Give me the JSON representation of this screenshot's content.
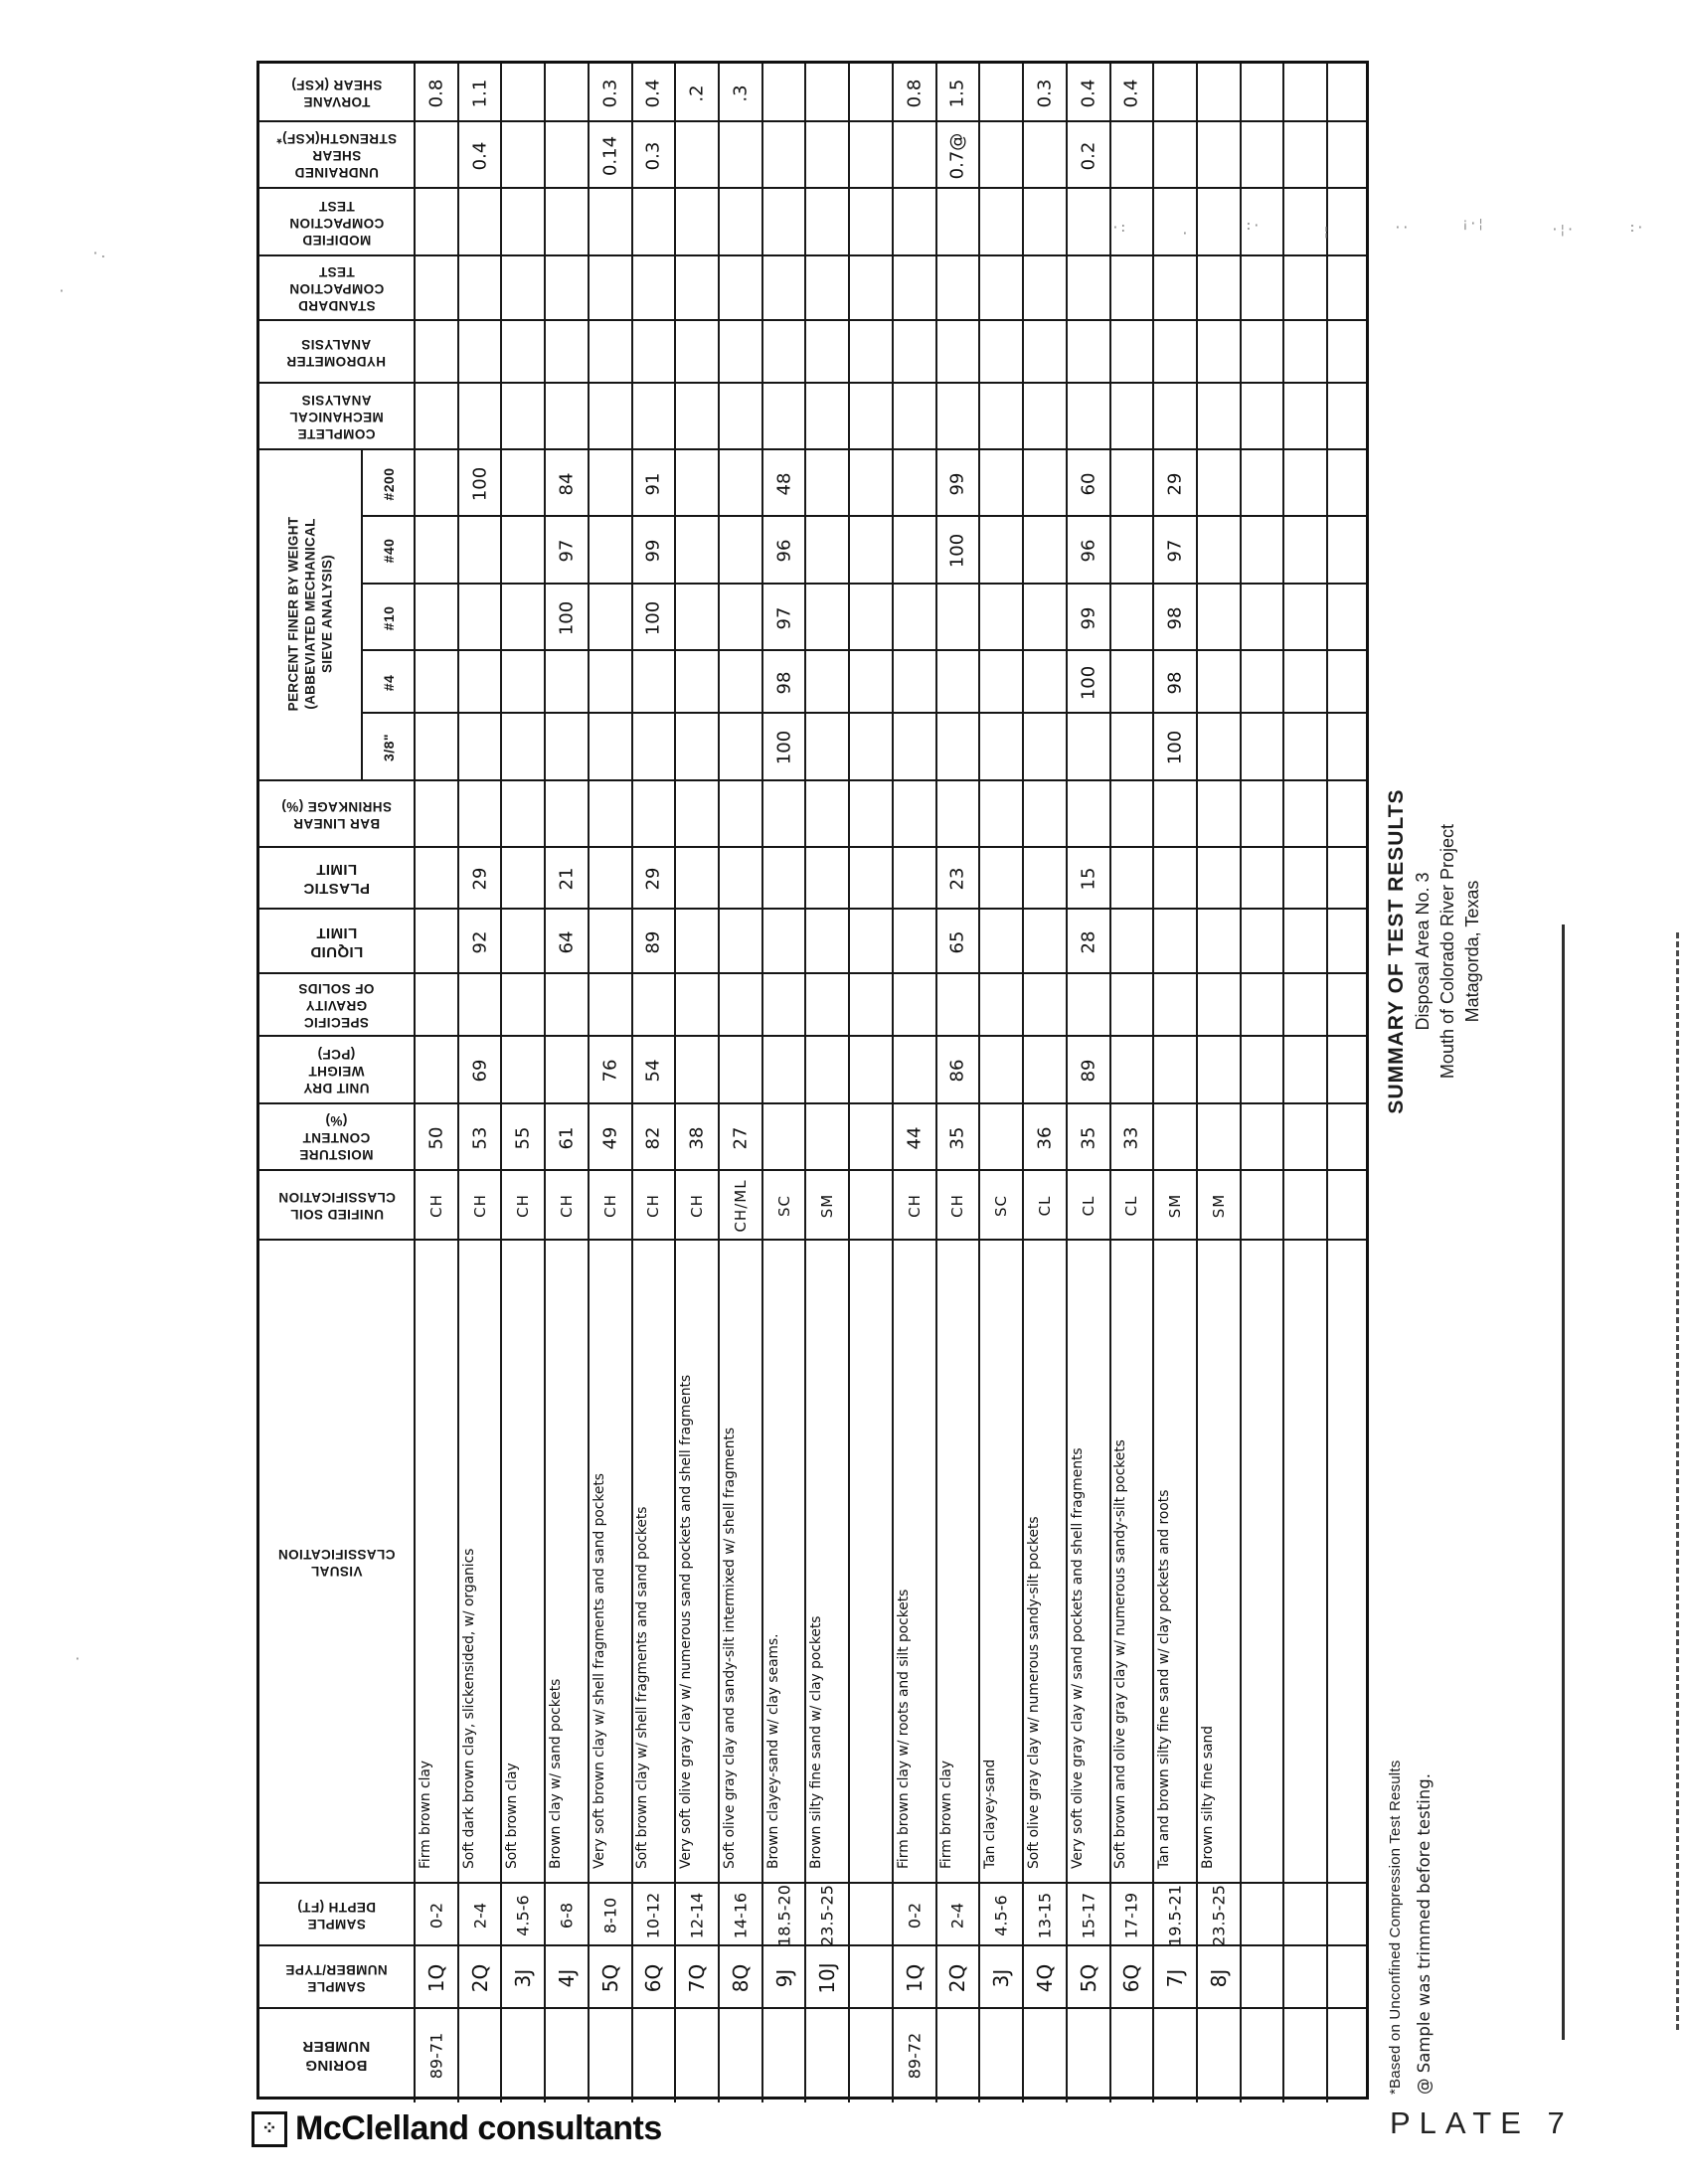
{
  "title_block": {
    "line1": "SUMMARY OF TEST RESULTS",
    "line2": "Disposal Area No. 3",
    "line3": "Mouth of Colorado River Project",
    "line4": "Matagorda, Texas"
  },
  "footnotes": {
    "line1": "*Based on Unconfined Compression Test Results",
    "line2": "@ Sample was trimmed before testing."
  },
  "footer": {
    "brand": "McClelland consultants",
    "plate": "PLATE 7",
    "logo_glyph": "⁘"
  },
  "table": {
    "row_labels": {
      "torvane": [
        "TORVANE",
        "SHEAR (KSF)"
      ],
      "undrained": [
        "UNDRAINED",
        "SHEAR",
        "STRENGTH(KSF)*"
      ],
      "mod_compaction": [
        "MODIFIED",
        "COMPACTION",
        "TEST"
      ],
      "std_compaction": [
        "STANDARD",
        "COMPACTION",
        "TEST"
      ],
      "hydrometer": [
        "HYDROMETER",
        "ANALYSIS"
      ],
      "complete_mech": [
        "COMPLETE",
        "MECHANICAL",
        "ANALYSIS"
      ],
      "p200": [
        "#200"
      ],
      "p40": [
        "#40"
      ],
      "p10": [
        "#10"
      ],
      "p4": [
        "#4"
      ],
      "p38": [
        "3/8\""
      ],
      "shrinkage": [
        "BAR LINEAR",
        "SHRINKAGE (%)"
      ],
      "plastic_limit": [
        "PLASTIC",
        "LIMIT"
      ],
      "liquid_limit": [
        "LIQUID",
        "LIMIT"
      ],
      "specific_gravity": [
        "SPECIFIC",
        "GRAVITY",
        "OF SOLIDS"
      ],
      "unit_dry_weight": [
        "UNIT DRY",
        "WEIGHT",
        "(PCF)"
      ],
      "moisture": [
        "MOISTURE",
        "CONTENT",
        "(%)"
      ],
      "unified": [
        "UNIFIED SOIL",
        "CLASSIFICATION"
      ],
      "visual": [
        "VISUAL CLASSIFICATION"
      ],
      "depth": [
        "SAMPLE",
        "DEPTH (FT)"
      ],
      "sample": [
        "SAMPLE",
        "NUMBER/TYPE"
      ],
      "boring": [
        "BORING",
        "NUMBER"
      ]
    },
    "sieve_group_lines": [
      "PERCENT FINER BY WEIGHT",
      "(ABBEVIATED MECHANICAL",
      "SIEVE ANALYSIS)"
    ],
    "columns": [
      {
        "boring": "89-71",
        "sample": "1Q",
        "depth": "0-2",
        "visual": "Firm brown clay",
        "unified": "CH",
        "moisture": "50",
        "torvane": "0.8"
      },
      {
        "sample": "2Q",
        "depth": "2-4",
        "visual": "Soft dark brown clay, slickensided, w/ organics",
        "unified": "CH",
        "moisture": "53",
        "unit_dry_weight": "69",
        "liquid_limit": "92",
        "plastic_limit": "29",
        "p200": "100",
        "torvane": "1.1",
        "undrained": "0.4"
      },
      {
        "sample": "3J",
        "depth": "4.5-6",
        "visual": "Soft brown clay",
        "unified": "CH",
        "moisture": "55"
      },
      {
        "sample": "4J",
        "depth": "6-8",
        "visual": "Brown clay w/ sand pockets",
        "unified": "CH",
        "moisture": "61",
        "liquid_limit": "64",
        "plastic_limit": "21",
        "p200": "84",
        "p40": "97",
        "p10": "100"
      },
      {
        "sample": "5Q",
        "depth": "8-10",
        "visual": "Very soft brown clay w/ shell fragments and sand pockets",
        "unified": "CH",
        "moisture": "49",
        "unit_dry_weight": "76",
        "torvane": "0.3",
        "undrained": "0.14"
      },
      {
        "sample": "6Q",
        "depth": "10-12",
        "visual": "Soft brown clay w/ shell fragments and sand pockets",
        "unified": "CH",
        "moisture": "82",
        "unit_dry_weight": "54",
        "liquid_limit": "89",
        "plastic_limit": "29",
        "p200": "91",
        "p40": "99",
        "p10": "100",
        "torvane": "0.4",
        "undrained": "0.3"
      },
      {
        "sample": "7Q",
        "depth": "12-14",
        "visual": "Very soft olive gray clay w/ numerous sand pockets and shell fragments",
        "unified": "CH",
        "moisture": "38",
        "torvane": ".2"
      },
      {
        "sample": "8Q",
        "depth": "14-16",
        "visual": "Soft olive gray clay and sandy-silt intermixed w/ shell fragments",
        "unified": "CH/ML",
        "moisture": "27",
        "torvane": ".3"
      },
      {
        "sample": "9J",
        "depth": "18.5-20",
        "visual": "Brown clayey-sand w/ clay seams.",
        "unified": "SC",
        "p200": "48",
        "p40": "96",
        "p10": "97",
        "p4": "98",
        "p38": "100"
      },
      {
        "sample": "10J",
        "depth": "23.5-25",
        "visual": "Brown silty fine sand w/ clay pockets",
        "unified": "SM"
      },
      {},
      {
        "boring": "89-72",
        "sample": "1Q",
        "depth": "0-2",
        "visual": "Firm brown clay w/ roots and silt pockets",
        "unified": "CH",
        "moisture": "44",
        "torvane": "0.8"
      },
      {
        "sample": "2Q",
        "depth": "2-4",
        "visual": "Firm brown clay",
        "unified": "CH",
        "moisture": "35",
        "unit_dry_weight": "86",
        "liquid_limit": "65",
        "plastic_limit": "23",
        "p200": "99",
        "p40": "100",
        "torvane": "1.5",
        "undrained": "0.7@"
      },
      {
        "sample": "3J",
        "depth": "4.5-6",
        "visual": "Tan clayey-sand",
        "unified": "SC"
      },
      {
        "sample": "4Q",
        "depth": "13-15",
        "visual": "Soft olive gray clay w/ numerous sandy-silt pockets",
        "unified": "CL",
        "moisture": "36",
        "torvane": "0.3"
      },
      {
        "sample": "5Q",
        "depth": "15-17",
        "visual": "Very soft olive gray clay w/ sand pockets and shell fragments",
        "unified": "CL",
        "moisture": "35",
        "unit_dry_weight": "89",
        "liquid_limit": "28",
        "plastic_limit": "15",
        "p200": "60",
        "p40": "96",
        "p10": "99",
        "p4": "100",
        "torvane": "0.4",
        "undrained": "0.2"
      },
      {
        "sample": "6Q",
        "depth": "17-19",
        "visual": "Soft brown and olive gray clay w/ numerous sandy-silt pockets",
        "unified": "CL",
        "moisture": "33",
        "torvane": "0.4"
      },
      {
        "sample": "7J",
        "depth": "19.5-21",
        "visual": "Tan and brown silty fine sand w/ clay pockets and roots",
        "unified": "SM",
        "p200": "29",
        "p40": "97",
        "p10": "98",
        "p4": "98",
        "p38": "100"
      },
      {
        "sample": "8J",
        "depth": "23.5-25",
        "visual": "Brown silty fine sand",
        "unified": "SM"
      },
      {},
      {},
      {}
    ]
  }
}
